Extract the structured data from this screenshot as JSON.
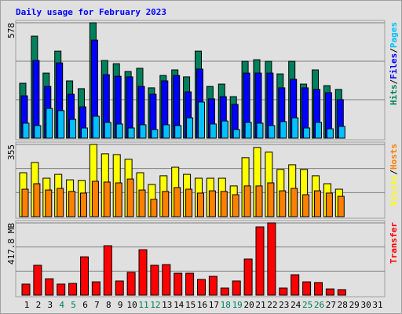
{
  "chart_data": [
    {
      "type": "bar",
      "title": "Daily usage for February 2023",
      "legend_separator": "/",
      "ylim": [
        0,
        578
      ],
      "yticks": [
        578
      ],
      "series": [
        {
          "name": "Hits",
          "color": "#00805c",
          "values": [
            275,
            511,
            326,
            436,
            287,
            248,
            578,
            389,
            373,
            334,
            350,
            252,
            314,
            342,
            307,
            436,
            259,
            271,
            208,
            385,
            393,
            385,
            322,
            385,
            271,
            342,
            263,
            244,
            null,
            null,
            null
          ]
        },
        {
          "name": "Files",
          "color": "#0000ff",
          "values": [
            212,
            389,
            259,
            377,
            220,
            157,
            491,
            318,
            310,
            307,
            259,
            220,
            287,
            314,
            232,
            346,
            197,
            208,
            169,
            326,
            326,
            326,
            252,
            295,
            252,
            244,
            228,
            193,
            null,
            null,
            null
          ]
        },
        {
          "name": "Pages",
          "color": "#00c0ff",
          "values": [
            75,
            63,
            149,
            138,
            94,
            51,
            110,
            79,
            71,
            51,
            67,
            43,
            67,
            63,
            102,
            181,
            71,
            86,
            43,
            79,
            75,
            63,
            83,
            102,
            51,
            79,
            47,
            59,
            null,
            null,
            null
          ]
        }
      ]
    },
    {
      "type": "bar",
      "legend_separator": "/",
      "ylim": [
        0,
        355
      ],
      "yticks": [
        355
      ],
      "series": [
        {
          "name": "Visits",
          "color": "#ffff00",
          "values": [
            216,
            266,
            189,
            208,
            181,
            178,
            355,
            309,
            305,
            282,
            216,
            158,
            201,
            243,
            208,
            189,
            189,
            189,
            151,
            290,
            340,
            317,
            232,
            255,
            232,
            201,
            162,
            135,
            null,
            null,
            null
          ]
        },
        {
          "name": "Hosts",
          "color": "#ff8000",
          "values": [
            135,
            162,
            131,
            139,
            124,
            116,
            174,
            170,
            166,
            185,
            131,
            85,
            124,
            143,
            135,
            116,
            127,
            124,
            108,
            151,
            151,
            166,
            127,
            139,
            108,
            127,
            116,
            100,
            null,
            null,
            null
          ]
        }
      ]
    },
    {
      "type": "bar",
      "ylim": [
        0,
        417.8
      ],
      "yticks": [
        {
          "value": 417.8,
          "label": "417.8 MB"
        }
      ],
      "categories": [
        "1",
        "2",
        "3",
        "4",
        "5",
        "6",
        "7",
        "8",
        "9",
        "10",
        "11",
        "12",
        "13",
        "14",
        "15",
        "16",
        "17",
        "18",
        "19",
        "20",
        "21",
        "22",
        "23",
        "24",
        "25",
        "26",
        "27",
        "28",
        "29",
        "30",
        "31"
      ],
      "category_colors": [
        "#000000",
        "#000000",
        "#000000",
        "#00805c",
        "#00805c",
        "#000000",
        "#000000",
        "#000000",
        "#000000",
        "#000000",
        "#00805c",
        "#00805c",
        "#000000",
        "#000000",
        "#000000",
        "#000000",
        "#000000",
        "#00805c",
        "#00805c",
        "#000000",
        "#000000",
        "#000000",
        "#000000",
        "#000000",
        "#00805c",
        "#00805c",
        "#000000",
        "#000000",
        "#000000",
        "#000000",
        "#000000"
      ],
      "series": [
        {
          "name": "Transfer",
          "color": "#ff0000",
          "values": [
            64,
            173,
            95,
            64,
            68,
            222,
            77,
            286,
            82,
            132,
            263,
            173,
            177,
            127,
            127,
            91,
            109,
            41,
            82,
            209,
            395,
            418,
            41,
            118,
            77,
            73,
            36,
            32,
            null,
            null,
            null
          ]
        }
      ]
    }
  ]
}
